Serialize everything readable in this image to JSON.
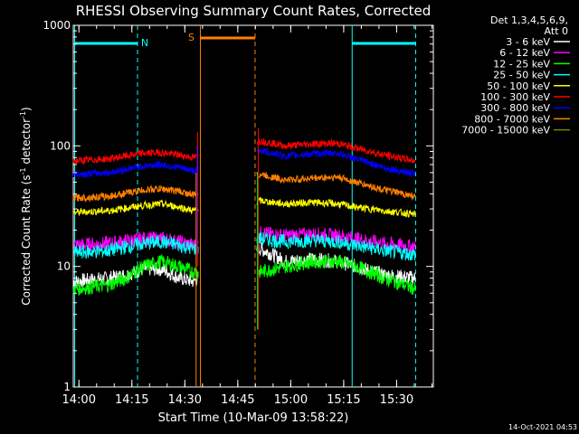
{
  "chart_data": {
    "type": "line",
    "title": "RHESSI Observing Summary Count Rates, Corrected",
    "xlabel": "Start Time (10-Mar-09 13:58:22)",
    "ylabel_parts": {
      "main": "Corrected Count Rate (s",
      "sup1": "-1",
      "mid": " detector",
      "sup2": "-1",
      "end": ")"
    },
    "ylog": true,
    "ylim": [
      1,
      1000
    ],
    "xlim_min": [
      0,
      102
    ],
    "xtick_labels": [
      "14:00",
      "14:15",
      "14:30",
      "14:45",
      "15:00",
      "15:15",
      "15:30"
    ],
    "xtick_min": [
      1.6,
      16.6,
      31.6,
      46.6,
      61.6,
      76.6,
      91.6
    ],
    "ytick_labels": [
      "1",
      "10",
      "100",
      "1000"
    ],
    "ytick_values": [
      1,
      10,
      100,
      1000
    ],
    "legend_header": [
      "Det 1,3,4,5,6,9,",
      "Att 0"
    ],
    "footer_date": "14-Oct-2021 04:53",
    "bands_top": [
      {
        "label": "N",
        "color": "#00ffff",
        "start_min": 0.4,
        "end_min": 18.2
      },
      {
        "label": "",
        "color": "#00ffff",
        "start_min": 79.0,
        "end_min": 97.0
      },
      {
        "label": "S",
        "color": "#ff8000",
        "start_min": 36.0,
        "end_min": 51.5
      }
    ],
    "markers": [
      {
        "min": 0.4,
        "color": "#00ffff",
        "style": "solid"
      },
      {
        "min": 18.2,
        "color": "#00ffff",
        "style": "dashed"
      },
      {
        "min": 79.0,
        "color": "#00ffff",
        "style": "solid"
      },
      {
        "min": 97.0,
        "color": "#00ffff",
        "style": "dashed"
      },
      {
        "min": 36.0,
        "color": "#ff8000",
        "style": "solid"
      },
      {
        "min": 51.5,
        "color": "#ff8000",
        "style": "dashed"
      }
    ],
    "gaps": [
      [
        35.5,
        52.0
      ]
    ],
    "series": [
      {
        "name": "3 - 6 keV",
        "color": "#ffffff",
        "points": [
          [
            0,
            7.5
          ],
          [
            10,
            8
          ],
          [
            15,
            8.5
          ],
          [
            20,
            9.5
          ],
          [
            25,
            9.5
          ],
          [
            30,
            8
          ],
          [
            34,
            7.5
          ],
          [
            53,
            14
          ],
          [
            60,
            11
          ],
          [
            68,
            11.5
          ],
          [
            75,
            11
          ],
          [
            80,
            10
          ],
          [
            88,
            8.5
          ],
          [
            97,
            8
          ]
        ]
      },
      {
        "name": "6 - 12 keV",
        "color": "#ff00ff",
        "points": [
          [
            0,
            15
          ],
          [
            10,
            15.5
          ],
          [
            20,
            17
          ],
          [
            25,
            17
          ],
          [
            30,
            16
          ],
          [
            34,
            15
          ],
          [
            53,
            19
          ],
          [
            60,
            18
          ],
          [
            68,
            18.5
          ],
          [
            75,
            18
          ],
          [
            80,
            17
          ],
          [
            88,
            15.5
          ],
          [
            97,
            14.5
          ]
        ]
      },
      {
        "name": "12 - 25 keV",
        "color": "#00ff00",
        "points": [
          [
            0,
            6.5
          ],
          [
            10,
            7
          ],
          [
            15,
            8
          ],
          [
            20,
            10
          ],
          [
            25,
            11
          ],
          [
            30,
            10
          ],
          [
            34,
            9
          ],
          [
            53,
            9
          ],
          [
            60,
            10
          ],
          [
            68,
            11
          ],
          [
            75,
            11
          ],
          [
            80,
            10
          ],
          [
            88,
            8
          ],
          [
            97,
            6.5
          ]
        ]
      },
      {
        "name": "25 - 50 keV",
        "color": "#00ffff",
        "points": [
          [
            0,
            13
          ],
          [
            10,
            13.5
          ],
          [
            20,
            15.5
          ],
          [
            25,
            16
          ],
          [
            30,
            15
          ],
          [
            34,
            14
          ],
          [
            53,
            17
          ],
          [
            60,
            16
          ],
          [
            68,
            16.5
          ],
          [
            75,
            16
          ],
          [
            80,
            15
          ],
          [
            88,
            13.5
          ],
          [
            97,
            12.5
          ]
        ]
      },
      {
        "name": "50 - 100 keV",
        "color": "#ffff00",
        "points": [
          [
            0,
            28
          ],
          [
            10,
            29
          ],
          [
            20,
            32
          ],
          [
            25,
            33
          ],
          [
            30,
            31
          ],
          [
            34,
            29
          ],
          [
            53,
            35
          ],
          [
            60,
            33
          ],
          [
            68,
            34
          ],
          [
            75,
            33
          ],
          [
            80,
            31
          ],
          [
            88,
            29
          ],
          [
            97,
            27
          ]
        ]
      },
      {
        "name": "100 - 300 keV",
        "color": "#ff0000",
        "points": [
          [
            0,
            75
          ],
          [
            10,
            78
          ],
          [
            20,
            87
          ],
          [
            25,
            88
          ],
          [
            30,
            84
          ],
          [
            34,
            80
          ],
          [
            53,
            110
          ],
          [
            60,
            100
          ],
          [
            68,
            104
          ],
          [
            75,
            105
          ],
          [
            80,
            96
          ],
          [
            88,
            84
          ],
          [
            97,
            75
          ]
        ]
      },
      {
        "name": "300 - 800 keV",
        "color": "#0000ff",
        "points": [
          [
            0,
            58
          ],
          [
            10,
            60
          ],
          [
            20,
            68
          ],
          [
            25,
            70
          ],
          [
            30,
            66
          ],
          [
            34,
            62
          ],
          [
            53,
            92
          ],
          [
            60,
            82
          ],
          [
            68,
            86
          ],
          [
            75,
            87
          ],
          [
            80,
            78
          ],
          [
            88,
            66
          ],
          [
            97,
            58
          ]
        ]
      },
      {
        "name": "800 - 7000 keV",
        "color": "#ff8000",
        "points": [
          [
            0,
            37
          ],
          [
            10,
            38
          ],
          [
            20,
            43
          ],
          [
            25,
            44
          ],
          [
            30,
            42
          ],
          [
            34,
            39
          ],
          [
            53,
            58
          ],
          [
            60,
            52
          ],
          [
            68,
            54
          ],
          [
            75,
            55
          ],
          [
            80,
            50
          ],
          [
            88,
            43
          ],
          [
            97,
            38
          ]
        ]
      },
      {
        "name": "7000 - 15000 keV",
        "color": "#808000",
        "points": []
      }
    ]
  }
}
